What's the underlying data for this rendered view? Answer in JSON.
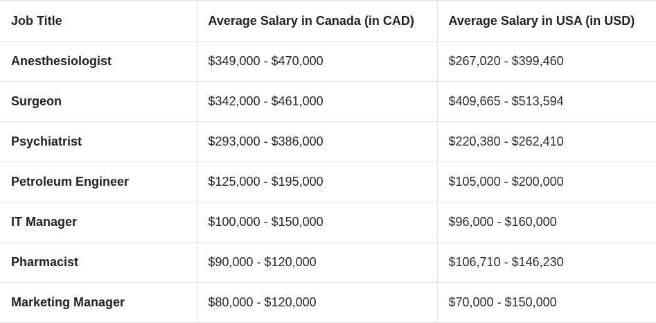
{
  "table": {
    "headers": [
      "Job Title",
      "Average Salary in Canada (in CAD)",
      "Average Salary in USA (in USD)"
    ],
    "rows": [
      [
        "Anesthesiologist",
        "$349,000 - $470,000",
        "$267,020 - $399,460"
      ],
      [
        "Surgeon",
        "$342,000 - $461,000",
        "$409,665 - $513,594"
      ],
      [
        "Psychiatrist",
        "$293,000 - $386,000",
        "$220,380 - $262,410"
      ],
      [
        "Petroleum Engineer",
        "$125,000 - $195,000",
        "$105,000 - $200,000"
      ],
      [
        "IT Manager",
        "$100,000 - $150,000",
        "$96,000 - $160,000"
      ],
      [
        "Pharmacist",
        "$90,000 - $120,000",
        "$106,710 - $146,230"
      ],
      [
        "Marketing Manager",
        "$80,000 - $120,000",
        "$70,000 - $150,000"
      ]
    ]
  }
}
